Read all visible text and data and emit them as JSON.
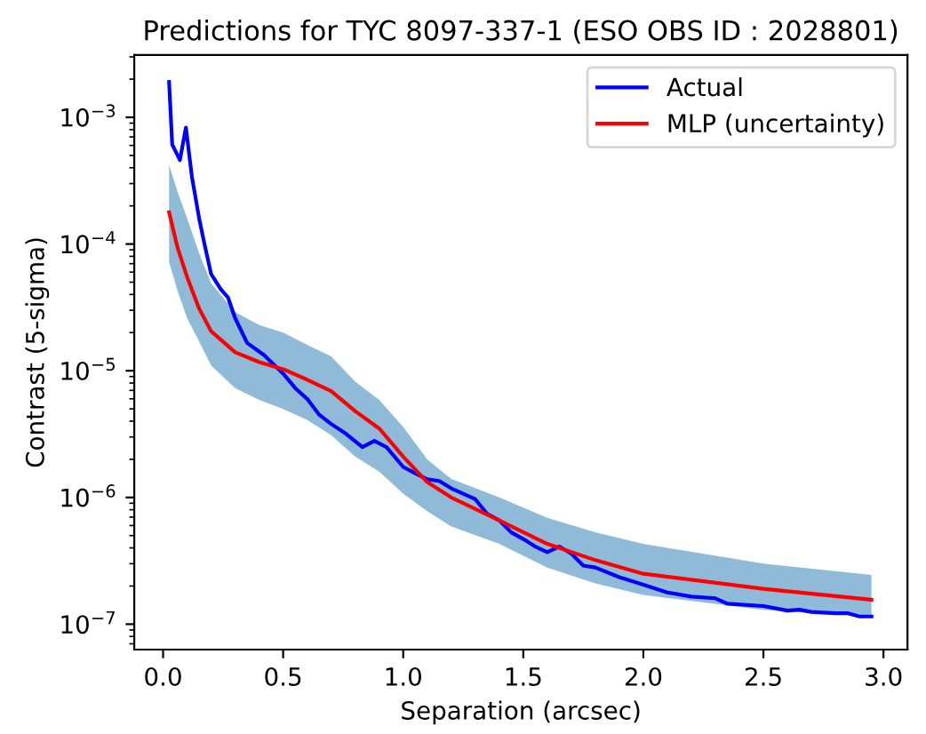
{
  "chart_data": {
    "type": "line",
    "title": "Predictions for TYC 8097-337-1 (ESO OBS ID : 2028801)",
    "xlabel": "Separation (arcsec)",
    "ylabel": "Contrast (5-sigma)",
    "log": "y",
    "grid": false,
    "legend": "top right",
    "line_style": "solid",
    "marker": "none",
    "xlim": [
      -0.12,
      3.1
    ],
    "xticks": [
      {
        "value": 0,
        "label": "0.0"
      },
      0.5,
      {
        "value": 1,
        "label": "1.0"
      },
      1.5,
      {
        "value": 2,
        "label": "2.0"
      },
      2.5,
      {
        "value": 3,
        "label": "3.0"
      }
    ],
    "ylim": [
      6.3e-08,
      0.0031
    ],
    "yticks": [
      {
        "value": 1e-07,
        "label": "10$^{−7}$"
      },
      {
        "value": 1e-06,
        "label": "10$^{−6}$"
      },
      {
        "value": 1e-05,
        "label": "10$^{−5}$"
      },
      {
        "value": 0.0001,
        "label": "10$^{−4}$"
      },
      {
        "value": 0.001,
        "label": "10$^{−3}$"
      }
    ],
    "series": [
      {
        "name": "Actual",
        "color": "#0000ff",
        "x": [
          0.025,
          0.038,
          0.07,
          0.095,
          0.12,
          0.15,
          0.17,
          0.2,
          0.24,
          0.27,
          0.3,
          0.35,
          0.42,
          0.5,
          0.55,
          0.6,
          0.65,
          0.7,
          0.76,
          0.83,
          0.88,
          0.93,
          1.0,
          1.05,
          1.1,
          1.15,
          1.2,
          1.3,
          1.35,
          1.4,
          1.45,
          1.5,
          1.55,
          1.6,
          1.65,
          1.7,
          1.75,
          1.8,
          1.9,
          2.0,
          2.1,
          2.2,
          2.3,
          2.35,
          2.5,
          2.6,
          2.65,
          2.7,
          2.8,
          2.85,
          2.9,
          2.95
        ],
        "values": [
          0.0019,
          0.00061,
          0.00046,
          0.00083,
          0.00034,
          0.00016,
          0.000105,
          5.8e-05,
          4.4e-05,
          3.8e-05,
          2.6e-05,
          1.66e-05,
          1.33e-05,
          9.5e-06,
          7.3e-06,
          6e-06,
          4.5e-06,
          3.8e-06,
          3.2e-06,
          2.5e-06,
          2.8e-06,
          2.5e-06,
          1.74e-06,
          1.55e-06,
          1.39e-06,
          1.35e-06,
          1.18e-06,
          9.7e-07,
          7.4e-07,
          6.6e-07,
          5.3e-07,
          4.7e-07,
          4.1e-07,
          3.7e-07,
          4.1e-07,
          3.6e-07,
          2.9e-07,
          2.8e-07,
          2.35e-07,
          2.05e-07,
          1.78e-07,
          1.65e-07,
          1.6e-07,
          1.45e-07,
          1.39e-07,
          1.28e-07,
          1.3e-07,
          1.25e-07,
          1.22e-07,
          1.22e-07,
          1.15e-07,
          1.15e-07
        ]
      },
      {
        "name": "MLP (uncertainty)",
        "color": "#ff0000",
        "x": [
          0.025,
          0.06,
          0.1,
          0.15,
          0.2,
          0.3,
          0.4,
          0.5,
          0.6,
          0.7,
          0.8,
          0.9,
          1.0,
          1.1,
          1.2,
          1.4,
          1.6,
          1.8,
          2.0,
          2.5,
          2.95
        ],
        "values": [
          0.000178,
          9.4e-05,
          5.5e-05,
          3.1e-05,
          2.05e-05,
          1.4e-05,
          1.17e-05,
          1.03e-05,
          8.5e-06,
          6.9e-06,
          4.8e-06,
          3.5e-06,
          2.1e-06,
          1.32e-06,
          1e-06,
          6.6e-07,
          4.3e-07,
          3.2e-07,
          2.5e-07,
          1.9e-07,
          1.56e-07
        ],
        "lower": [
          7.2e-05,
          4.3e-05,
          2.6e-05,
          1.7e-05,
          1.1e-05,
          7.3e-06,
          5.9e-06,
          5e-06,
          4.1e-06,
          3.1e-06,
          2.1e-06,
          1.6e-06,
          1.07e-06,
          7.8e-07,
          5.9e-07,
          4.3e-07,
          2.8e-07,
          2.1e-07,
          1.7e-07,
          1.3e-07,
          1.15e-07
        ],
        "upper": [
          0.00042,
          0.00026,
          0.00016,
          8.5e-05,
          4.9e-05,
          2.9e-05,
          2.3e-05,
          2e-05,
          1.6e-05,
          1.3e-05,
          8.2e-06,
          5.9e-06,
          3.6e-06,
          2e-06,
          1.4e-06,
          1e-06,
          6.9e-07,
          5.3e-07,
          4.3e-07,
          3e-07,
          2.45e-07
        ]
      }
    ]
  }
}
